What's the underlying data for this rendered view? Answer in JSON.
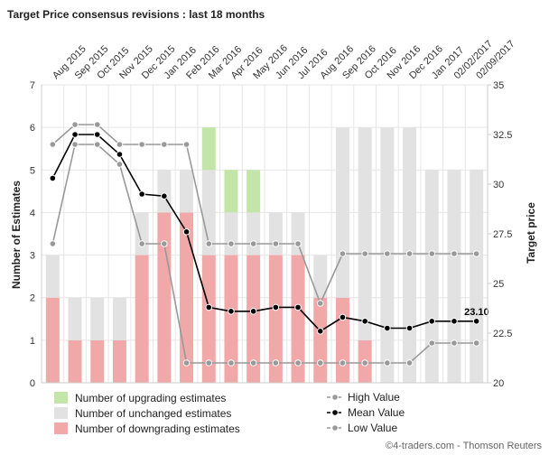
{
  "chart_data": {
    "type": "bar",
    "title": "Target Price consensus revisions : last 18 months",
    "categories": [
      "Aug 2015",
      "Sep 2015",
      "Oct 2015",
      "Nov 2015",
      "Dec 2015",
      "Jan 2016",
      "Feb 2016",
      "Mar 2016",
      "Apr 2016",
      "May 2016",
      "Jun 2016",
      "Jul 2016",
      "Aug 2016",
      "Sep 2016",
      "Oct 2016",
      "Nov 2016",
      "Dec 2016",
      "Jan 2017",
      "02/02/2017",
      "02/09/2017"
    ],
    "ylabel_left": "Number of Estimates",
    "ylabel_right": "Target price",
    "ylim_left": [
      0,
      7
    ],
    "yticks_left": [
      0,
      1,
      2,
      3,
      4,
      5,
      6,
      7
    ],
    "ylim_right": [
      20,
      35
    ],
    "yticks_right": [
      20,
      22.5,
      25,
      27.5,
      30,
      32.5,
      35
    ],
    "grid": true,
    "bar_series": [
      {
        "name": "Number of downgrading estimates",
        "color": "#f0a8a8",
        "values": [
          2,
          1,
          1,
          1,
          3,
          4,
          4,
          3,
          3,
          3,
          3,
          3,
          2,
          2,
          1,
          0,
          0,
          0,
          0,
          0
        ]
      },
      {
        "name": "Number of unchanged estimates",
        "color": "#e2e2e2",
        "values": [
          1,
          1,
          1,
          1,
          1,
          1,
          1,
          2,
          1,
          1,
          1,
          1,
          1,
          4,
          5,
          6,
          6,
          5,
          5,
          5
        ]
      },
      {
        "name": "Number of upgrading estimates",
        "color": "#c3e6a8",
        "values": [
          0,
          0,
          0,
          0,
          0,
          0,
          0,
          1,
          1,
          1,
          0,
          0,
          0,
          0,
          0,
          0,
          0,
          0,
          0,
          0
        ]
      }
    ],
    "line_series": [
      {
        "name": "High Value",
        "color": "#999999",
        "marker": "#999999",
        "values": [
          32,
          33,
          33,
          32,
          32,
          32,
          32,
          27,
          27,
          27,
          27,
          27,
          24,
          26.5,
          26.5,
          26.5,
          26.5,
          26.5,
          26.5,
          26.5
        ]
      },
      {
        "name": "Mean Value",
        "color": "#000000",
        "marker": "#000000",
        "values": [
          30.3,
          32.5,
          32.5,
          31.5,
          29.5,
          29.4,
          27.6,
          23.8,
          23.6,
          23.6,
          23.8,
          23.8,
          22.6,
          23.3,
          23.1,
          22.75,
          22.75,
          23.1,
          23.1,
          23.1
        ]
      },
      {
        "name": "Low Value",
        "color": "#999999",
        "marker": "#999999",
        "values": [
          27,
          32,
          32,
          31,
          27,
          27,
          21,
          21,
          21,
          21,
          21,
          21,
          21,
          21,
          21,
          21,
          21,
          22,
          22,
          22
        ]
      }
    ],
    "data_labels": [
      {
        "value": "23.10"
      }
    ],
    "legend": {
      "placement": "bottom",
      "bar_items": [
        "Number of upgrading estimates",
        "Number of unchanged estimates",
        "Number of downgrading estimates"
      ],
      "line_items": [
        "High Value",
        "Mean Value",
        "Low Value"
      ]
    },
    "credit": "©4-traders.com - Thomson Reuters"
  },
  "colors": {
    "grid": "#e6e6e6",
    "axis": "#cccccc",
    "plot_bg": "#ffffff"
  }
}
